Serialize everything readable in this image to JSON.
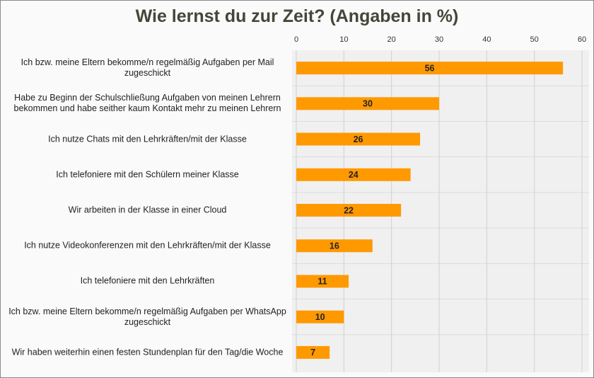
{
  "chart_data": {
    "type": "bar",
    "orientation": "horizontal",
    "title": "Wie lernst du zur Zeit? (Angaben in %)",
    "categories": [
      "Ich bzw. meine Eltern bekomme/n regelmäßig Aufgaben per Mail zugeschickt",
      "Habe zu Beginn der Schulschließung Aufgaben von meinen Lehrern bekommen und habe seither kaum Kontakt mehr zu meinen Lehrern",
      "Ich nutze Chats mit den Lehrkräften/mit der Klasse",
      "Ich telefoniere mit den Schülern meiner Klasse",
      "Wir arbeiten in der Klasse in einer Cloud",
      "Ich nutze Videokonferenzen mit den Lehrkräften/mit der Klasse",
      "Ich telefoniere mit den Lehrkräften",
      "Ich bzw. meine Eltern bekomme/n regelmäßig Aufgaben per WhatsApp zugeschickt",
      "Wir haben weiterhin einen festen Stundenplan für den Tag/die Woche"
    ],
    "values": [
      56,
      30,
      26,
      24,
      22,
      16,
      11,
      10,
      7
    ],
    "color": "#ff9900",
    "xlim": [
      0,
      60
    ],
    "xticks": [
      0,
      10,
      20,
      30,
      40,
      50,
      60
    ],
    "grid": true
  }
}
